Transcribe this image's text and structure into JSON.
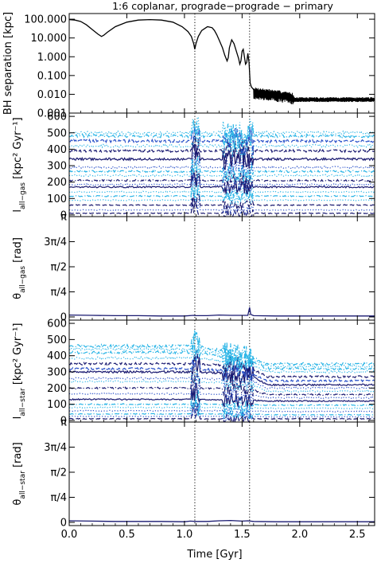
{
  "chart_data": {
    "title": "1:6 coplanar, prograde−prograde − primary",
    "xlabel": "Time [Gyr]",
    "xlim": [
      0,
      2.65
    ],
    "x_ticks": [
      0.0,
      0.5,
      1.0,
      1.5,
      2.0,
      2.5
    ],
    "x_tick_labels": [
      "0.0",
      "0.5",
      "1.0",
      "1.5",
      "2.0",
      "2.5"
    ],
    "vlines": [
      1.09,
      1.565
    ],
    "colors": {
      "navy": "#191970",
      "blue": "#2850c8",
      "cyan": "#28b4e6",
      "axis": "#000000"
    },
    "panels": [
      {
        "id": "separation",
        "type": "line",
        "ylabel": "BH separation [kpc]",
        "ylabel_parts": [
          {
            "t": "BH separation [kpc]",
            "sub": false
          }
        ],
        "yscale": "log",
        "ylim": [
          0.001,
          200
        ],
        "y_ticks": [
          100,
          10,
          1,
          0.1,
          0.01,
          0.001
        ],
        "y_tick_labels": [
          "100.000",
          "10.000",
          "1.000",
          "0.100",
          "0.010",
          "0.001"
        ],
        "series": [
          {
            "color": "#000000",
            "style": "solid",
            "x": [
              0,
              0.05,
              0.1,
              0.15,
              0.2,
              0.25,
              0.28,
              0.3,
              0.33,
              0.4,
              0.5,
              0.6,
              0.7,
              0.8,
              0.9,
              0.98,
              1.03,
              1.06,
              1.08,
              1.09,
              1.1,
              1.12,
              1.15,
              1.2,
              1.24,
              1.26,
              1.28,
              1.3,
              1.33,
              1.35,
              1.37,
              1.38,
              1.39,
              1.41,
              1.43,
              1.45,
              1.47,
              1.48,
              1.49,
              1.5,
              1.51,
              1.52,
              1.53,
              1.54,
              1.55,
              1.56,
              1.57,
              1.58,
              1.6,
              1.65,
              1.7,
              1.8,
              1.9,
              1.95,
              2.0,
              2.2,
              2.4,
              2.65
            ],
            "y": [
              95,
              90,
              75,
              50,
              28,
              16,
              12,
              14,
              20,
              40,
              70,
              90,
              95,
              90,
              70,
              40,
              22,
              12,
              5,
              2.5,
              5,
              12,
              25,
              40,
              35,
              25,
              15,
              8,
              3,
              1.2,
              0.6,
              0.9,
              3,
              8,
              5,
              2,
              0.8,
              0.4,
              0.6,
              2,
              2.5,
              1,
              0.4,
              0.5,
              1.5,
              0.5,
              0.04,
              0.025,
              0.018,
              0.015,
              0.012,
              0.01,
              0.009,
              0.006,
              0.005,
              0.005,
              0.005,
              0.005
            ]
          }
        ]
      },
      {
        "id": "l_gas",
        "type": "line",
        "ylabel": "l_all-gas [kpc² Gyr⁻¹]",
        "ylabel_parts": [
          {
            "t": "l",
            "sub": false
          },
          {
            "t": "all−gas",
            "sub": true
          },
          {
            "t": " [kpc² Gyr⁻¹]",
            "sub": false
          }
        ],
        "yscale": "linear",
        "ylim": [
          -10,
          620
        ],
        "y_ticks": [
          0,
          100,
          200,
          300,
          400,
          500,
          600
        ],
        "y_tick_labels": [
          "0",
          "100",
          "200",
          "300",
          "400",
          "500",
          "600"
        ],
        "profiles": [
          {
            "color": "#191970",
            "style": "dash",
            "v": 10
          },
          {
            "color": "#2850c8",
            "style": "dot",
            "v": 30
          },
          {
            "color": "#191970",
            "style": "dash",
            "v": 60
          },
          {
            "color": "#28b4e6",
            "style": "dot",
            "v": 90
          },
          {
            "color": "#28b4e6",
            "style": "dashdot",
            "v": 115
          },
          {
            "color": "#28b4e6",
            "style": "dot",
            "v": 140
          },
          {
            "color": "#191970",
            "style": "solid",
            "v": 170
          },
          {
            "color": "#2850c8",
            "style": "dot",
            "v": 185
          },
          {
            "color": "#191970",
            "style": "dashdot",
            "v": 210
          },
          {
            "color": "#28b4e6",
            "style": "dot",
            "v": 240
          },
          {
            "color": "#28b4e6",
            "style": "dashdot",
            "v": 265
          },
          {
            "color": "#2850c8",
            "style": "dot",
            "v": 290
          },
          {
            "color": "#191970",
            "style": "solid",
            "v": 340
          },
          {
            "color": "#191970",
            "style": "dash",
            "v": 390
          },
          {
            "color": "#28b4e6",
            "style": "dot",
            "v": 420
          },
          {
            "color": "#2850c8",
            "style": "dash",
            "v": 450
          },
          {
            "color": "#28b4e6",
            "style": "dashdot",
            "v": 480
          },
          {
            "color": "#28b4e6",
            "style": "dot",
            "v": 500
          }
        ]
      },
      {
        "id": "theta_gas",
        "type": "line",
        "ylabel": "θ_all-gas [rad]",
        "ylabel_parts": [
          {
            "t": "θ",
            "sub": false
          },
          {
            "t": "all−gas",
            "sub": true
          },
          {
            "t": " [rad]",
            "sub": false
          }
        ],
        "yscale": "linear",
        "ylim": [
          -0.1,
          3.1416
        ],
        "y_ticks": [
          0,
          0.7854,
          1.5708,
          2.3562,
          3.1416
        ],
        "y_tick_labels": [
          "0",
          "π/4",
          "π/2",
          "3π/4",
          "π"
        ],
        "series": [
          {
            "color": "#191970",
            "style": "solid",
            "x": [
              0,
              0.2,
              0.4,
              0.6,
              0.8,
              1.0,
              1.08,
              1.1,
              1.2,
              1.3,
              1.4,
              1.5,
              1.55,
              1.565,
              1.575,
              1.6,
              1.8,
              2.0,
              2.2,
              2.4,
              2.65
            ],
            "y": [
              0.06,
              0.05,
              0.04,
              0.04,
              0.03,
              0.03,
              0.05,
              0.04,
              0.04,
              0.06,
              0.05,
              0.05,
              0.05,
              0.3,
              0.08,
              0.04,
              0.03,
              0.03,
              0.03,
              0.03,
              0.03
            ]
          }
        ]
      },
      {
        "id": "l_star",
        "type": "line",
        "ylabel": "l_all-star [kpc² Gyr⁻¹]",
        "ylabel_parts": [
          {
            "t": "l",
            "sub": false
          },
          {
            "t": "all−star",
            "sub": true
          },
          {
            "t": " [kpc² Gyr⁻¹]",
            "sub": false
          }
        ],
        "yscale": "linear",
        "ylim": [
          -10,
          620
        ],
        "y_ticks": [
          0,
          100,
          200,
          300,
          400,
          500,
          600
        ],
        "y_tick_labels": [
          "0",
          "100",
          "200",
          "300",
          "400",
          "500",
          "600"
        ],
        "profiles": [
          {
            "color": "#191970",
            "style": "dash",
            "v": [
              10,
              10,
              10
            ]
          },
          {
            "color": "#2850c8",
            "style": "dot",
            "v": [
              25,
              25,
              22
            ]
          },
          {
            "color": "#28b4e6",
            "style": "dashdot",
            "v": [
              40,
              40,
              35
            ]
          },
          {
            "color": "#2850c8",
            "style": "dot",
            "v": [
              60,
              60,
              55
            ]
          },
          {
            "color": "#28b4e6",
            "style": "dot",
            "v": [
              80,
              80,
              75
            ]
          },
          {
            "color": "#28b4e6",
            "style": "dashdot",
            "v": [
              100,
              100,
              95
            ]
          },
          {
            "color": "#191970",
            "style": "solid",
            "v": [
              130,
              125,
              120
            ]
          },
          {
            "color": "#2850c8",
            "style": "dot",
            "v": [
              165,
              160,
              140
            ]
          },
          {
            "color": "#191970",
            "style": "dashdot",
            "v": [
              200,
              195,
              160
            ]
          },
          {
            "color": "#28b4e6",
            "style": "dot",
            "v": [
              240,
              230,
              180
            ]
          },
          {
            "color": "#2850c8",
            "style": "dot",
            "v": [
              260,
              250,
              200
            ]
          },
          {
            "color": "#191970",
            "style": "solid",
            "v": [
              300,
              285,
              220
            ]
          },
          {
            "color": "#2850c8",
            "style": "dash",
            "v": [
              320,
              300,
              245
            ]
          },
          {
            "color": "#191970",
            "style": "dash",
            "v": [
              350,
              330,
              270
            ]
          },
          {
            "color": "#28b4e6",
            "style": "dot",
            "v": [
              385,
              345,
              300
            ]
          },
          {
            "color": "#28b4e6",
            "style": "dashdot",
            "v": [
              420,
              370,
              320
            ]
          },
          {
            "color": "#28b4e6",
            "style": "dot",
            "v": [
              440,
              385,
              335
            ]
          },
          {
            "color": "#28b4e6",
            "style": "dashdot",
            "v": [
              460,
              400,
              350
            ]
          }
        ]
      },
      {
        "id": "theta_star",
        "type": "line",
        "ylabel": "θ_all-star [rad]",
        "ylabel_parts": [
          {
            "t": "θ",
            "sub": false
          },
          {
            "t": "all−star",
            "sub": true
          },
          {
            "t": " [rad]",
            "sub": false
          }
        ],
        "yscale": "linear",
        "ylim": [
          -0.1,
          3.1416
        ],
        "y_ticks": [
          0,
          0.7854,
          1.5708,
          2.3562,
          3.1416
        ],
        "y_tick_labels": [
          "0",
          "π/4",
          "π/2",
          "3π/4",
          "π"
        ],
        "series": [
          {
            "color": "#191970",
            "style": "solid",
            "x": [
              0,
              0.2,
              0.4,
              0.6,
              0.8,
              1.0,
              1.05,
              1.1,
              1.2,
              1.3,
              1.4,
              1.5,
              1.55,
              1.6,
              1.8,
              2.0,
              2.2,
              2.4,
              2.65
            ],
            "y": [
              0.05,
              0.04,
              0.03,
              0.03,
              0.03,
              0.02,
              0.04,
              0.03,
              0.03,
              0.05,
              0.06,
              0.04,
              0.05,
              0.03,
              0.02,
              0.02,
              0.02,
              0.02,
              0.02
            ]
          }
        ]
      }
    ]
  }
}
